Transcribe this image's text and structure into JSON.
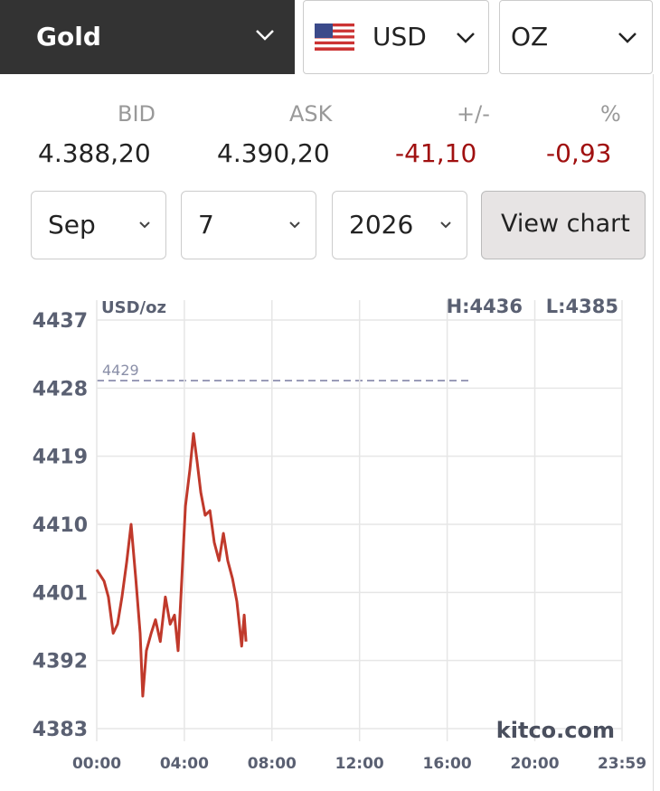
{
  "selectors": {
    "metal": "Gold",
    "currency": "USD",
    "unit": "OZ"
  },
  "quote": {
    "headers": [
      "BID",
      "ASK",
      "+/-",
      "%"
    ],
    "values": [
      "4.388,20",
      "4.390,20",
      "-41,10",
      "-0,93"
    ]
  },
  "date_picker": {
    "month": "Sep",
    "day": "7",
    "year": "2026",
    "button": "View chart"
  },
  "chart_data": {
    "type": "line",
    "unit_label": "USD/oz",
    "high_label": "H:4436",
    "low_label": "L:4385",
    "watermark": "kitco.com",
    "reference_line": 4429,
    "x": [
      0,
      20,
      32,
      45,
      57,
      69,
      82,
      94,
      107,
      119,
      126,
      136,
      149,
      161,
      174,
      188,
      201,
      213,
      223,
      233,
      243,
      255,
      265,
      275,
      285,
      297,
      310,
      322,
      335,
      347,
      359,
      372,
      384,
      397,
      404,
      409
    ],
    "series": [
      {
        "color": "#c0392b",
        "values": [
          4404,
          4402.5,
          4400.4,
          4395.6,
          4396.8,
          4400.4,
          4405,
          4410,
          4402.8,
          4395.6,
          4387.3,
          4393.3,
          4395.6,
          4397.4,
          4394.5,
          4400.4,
          4396.8,
          4398,
          4393.3,
          4402.8,
          4412.4,
          4417.2,
          4422,
          4418.3,
          4414.2,
          4411.2,
          4411.8,
          4407.6,
          4405.2,
          4408.8,
          4405.2,
          4402.8,
          4399.8,
          4393.9,
          4398,
          4394.5
        ]
      }
    ],
    "xlim": [
      0,
      1439
    ],
    "xticks": [
      {
        "value": 0,
        "label": "00:00"
      },
      {
        "value": 240,
        "label": "04:00"
      },
      {
        "value": 480,
        "label": "08:00"
      },
      {
        "value": 720,
        "label": "12:00"
      },
      {
        "value": 960,
        "label": "16:00"
      },
      {
        "value": 1200,
        "label": "20:00"
      },
      {
        "value": 1439,
        "label": "23:59"
      }
    ],
    "ylim": [
      4383,
      4437
    ],
    "yticks": [
      4383,
      4392,
      4401,
      4410,
      4419,
      4428,
      4437
    ],
    "grid": true
  }
}
